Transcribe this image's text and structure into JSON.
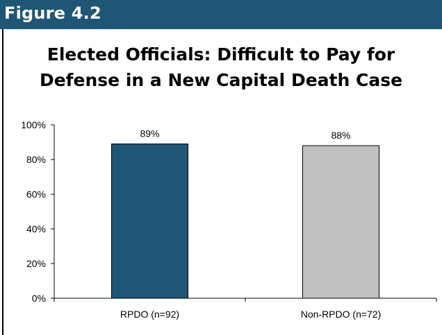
{
  "figure_label": "Figure 4.2",
  "colors": {
    "header": "#1f5575",
    "bar_rpdo": "#1f5575",
    "bar_non_rpdo": "#c0c0c0"
  },
  "chart_data": {
    "type": "bar",
    "title_lines": [
      "Elected Officials:  Difficult to Pay for",
      "Defense in a New Capital Death Case"
    ],
    "categories": [
      "RPDO (n=92)",
      "Non-RPDO (n=72)"
    ],
    "values": [
      89,
      88
    ],
    "data_labels": [
      "89%",
      "88%"
    ],
    "ylim": [
      0,
      100
    ],
    "yticks": [
      0,
      20,
      40,
      60,
      80,
      100
    ],
    "ytick_labels": [
      "0%",
      "20%",
      "40%",
      "60%",
      "80%",
      "100%"
    ],
    "xlabel": "",
    "ylabel": "",
    "grid": false,
    "legend": "none"
  }
}
